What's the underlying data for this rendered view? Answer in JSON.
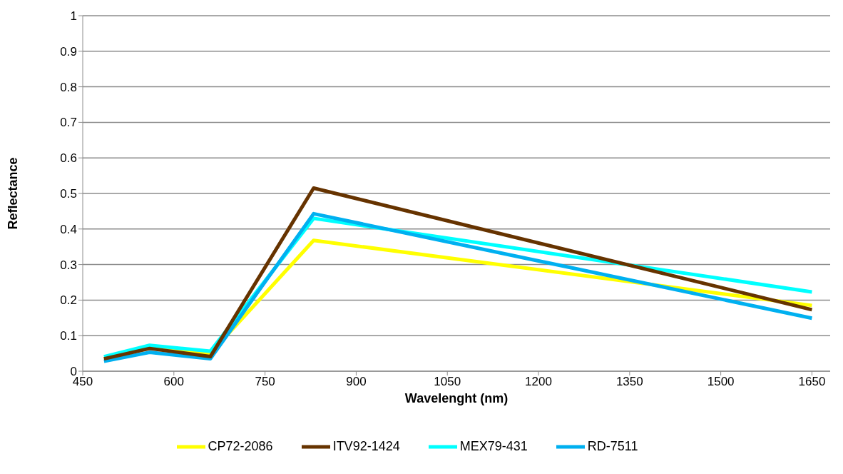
{
  "chart_data": {
    "type": "line",
    "xlabel": "Wavelenght (nm)",
    "ylabel": "Reflectance",
    "x": [
      485,
      560,
      660,
      830,
      1650
    ],
    "series": [
      {
        "name": "CP72-2086",
        "color": "#ffff00",
        "values": [
          0.035,
          0.065,
          0.05,
          0.368,
          0.185
        ]
      },
      {
        "name": "MEX79-431",
        "color": "#00ffff",
        "values": [
          0.041,
          0.073,
          0.056,
          0.43,
          0.223
        ]
      },
      {
        "name": "RD-7511",
        "color": "#00b0f0",
        "values": [
          0.028,
          0.053,
          0.035,
          0.443,
          0.149
        ]
      },
      {
        "name": "ITV92-1424",
        "color": "#663300",
        "values": [
          0.035,
          0.064,
          0.041,
          0.515,
          0.173
        ]
      }
    ],
    "xlim": [
      450,
      1680
    ],
    "xticks": [
      450,
      600,
      750,
      900,
      1050,
      1200,
      1350,
      1500,
      1650
    ],
    "ylim": [
      0,
      1
    ],
    "yticks": [
      0,
      0.1,
      0.2,
      0.3,
      0.4,
      0.5,
      0.6,
      0.7,
      0.8,
      0.9,
      1
    ],
    "grid": "y",
    "legend": "bottom",
    "marker": "none",
    "line_style": "solid"
  }
}
